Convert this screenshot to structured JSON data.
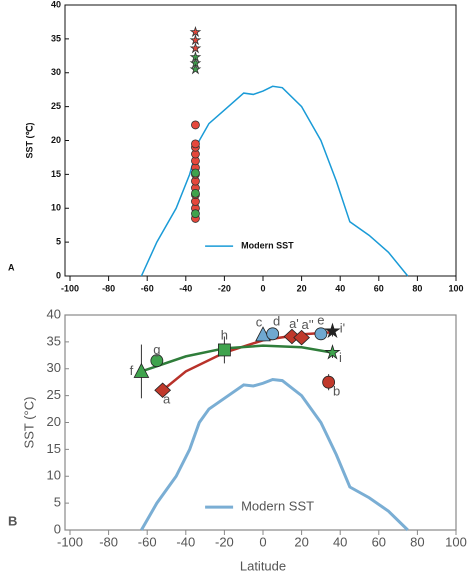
{
  "chart_data": [
    {
      "type": "scatter",
      "panel_label": "A",
      "ylabel": "SST (℃)",
      "xlim": [
        -100,
        100
      ],
      "xticks": [
        -100,
        -80,
        -60,
        -40,
        -20,
        0,
        20,
        40,
        60,
        80,
        100
      ],
      "ylim": [
        0,
        40
      ],
      "yticks": [
        0,
        5,
        10,
        15,
        20,
        25,
        30,
        35,
        40
      ],
      "series": [
        {
          "name": "Modern SST",
          "color": "#1a9bd7",
          "x": [
            -63,
            -55,
            -45,
            -38,
            -33,
            -28,
            -20,
            -10,
            -5,
            0,
            5,
            10,
            20,
            30,
            38,
            45,
            55,
            65,
            75
          ],
          "values": [
            0,
            5,
            10,
            15,
            20,
            22.5,
            24.5,
            27,
            26.8,
            27.3,
            28,
            27.8,
            25,
            20,
            14,
            8,
            6,
            3.5,
            0
          ]
        }
      ],
      "points": [
        {
          "marker": "circle",
          "color": "#e5483c",
          "x": [
            -35,
            -35,
            -35,
            -35,
            -35,
            -35,
            -35,
            -35,
            -35,
            -35,
            -35,
            -35,
            -35
          ],
          "values": [
            8.5,
            10,
            11,
            12,
            13,
            14,
            15,
            16,
            17,
            18,
            19,
            19.5,
            22.3
          ]
        },
        {
          "marker": "circle",
          "color": "#3fa34d",
          "x": [
            -35,
            -35,
            -35
          ],
          "values": [
            9.2,
            12.2,
            15.2
          ]
        },
        {
          "marker": "star",
          "color": "#e5483c",
          "x": [
            -35,
            -35,
            -35
          ],
          "values": [
            36,
            34.8,
            33.6
          ]
        },
        {
          "marker": "star",
          "color": "#3fa34d",
          "x": [
            -35,
            -35,
            -35
          ],
          "values": [
            32.3,
            31.4,
            30.5
          ]
        }
      ]
    },
    {
      "type": "scatter",
      "panel_label": "B",
      "ylabel": "SST (°C)",
      "xlabel": "Latitude",
      "xlim": [
        -100,
        100
      ],
      "xticks": [
        -100,
        -80,
        -60,
        -40,
        -20,
        0,
        20,
        40,
        60,
        80,
        100
      ],
      "ylim": [
        0,
        40
      ],
      "yticks": [
        0,
        5,
        10,
        15,
        20,
        25,
        30,
        35,
        40
      ],
      "series": [
        {
          "name": "Modern SST",
          "color": "#7aaed4",
          "x": [
            -63,
            -55,
            -45,
            -38,
            -33,
            -28,
            -20,
            -10,
            -5,
            0,
            5,
            10,
            20,
            30,
            38,
            45,
            55,
            65,
            75
          ],
          "values": [
            0,
            5,
            10,
            15,
            20,
            22.5,
            24.5,
            27,
            26.8,
            27.3,
            28,
            27.8,
            25,
            20,
            14,
            8,
            6,
            3.5,
            0
          ]
        }
      ],
      "fits": [
        {
          "color": "#b8322a",
          "x": [
            -52,
            -40,
            -20,
            0,
            20,
            36
          ],
          "values": [
            26,
            29.5,
            33,
            35.3,
            36.4,
            36.8
          ]
        },
        {
          "color": "#2f7d3a",
          "x": [
            -63,
            -40,
            -20,
            0,
            20,
            36
          ],
          "values": [
            29.5,
            32.3,
            33.8,
            34.3,
            34,
            33
          ]
        }
      ],
      "labeled_points": [
        {
          "label": "f",
          "marker": "triangle",
          "color": "#3fa34d",
          "x": -63,
          "value": 29.5,
          "error": 5
        },
        {
          "label": "g",
          "marker": "circle",
          "color": "#3fa34d",
          "x": -55,
          "value": 31.5,
          "error": 1
        },
        {
          "label": "a",
          "marker": "diamond",
          "color": "#c0392b",
          "x": -52,
          "value": 26,
          "error": 1
        },
        {
          "label": "h",
          "marker": "square",
          "color": "#3fa34d",
          "x": -20,
          "value": 33.5,
          "error": 2.5
        },
        {
          "label": "c",
          "marker": "triangle",
          "color": "#6fa8d0",
          "x": 0,
          "value": 36.3,
          "error": 0.8
        },
        {
          "label": "d",
          "marker": "circle",
          "color": "#6fa8d0",
          "x": 5,
          "value": 36.5,
          "error": 0.8
        },
        {
          "label": "a'",
          "marker": "diamond",
          "color": "#c0392b",
          "x": 15,
          "value": 36,
          "error": 0.5
        },
        {
          "label": "a''",
          "marker": "diamond",
          "color": "#c0392b",
          "x": 20,
          "value": 35.8,
          "error": 0.5
        },
        {
          "label": "e",
          "marker": "circle",
          "color": "#6fa8d0",
          "x": 30,
          "value": 36.5,
          "error": 0.8
        },
        {
          "label": "i'",
          "marker": "star",
          "color": "#222",
          "x": 36,
          "value": 37,
          "error": 1
        },
        {
          "label": "i",
          "marker": "star",
          "color": "#3fa34d",
          "x": 36,
          "value": 33,
          "error": 1
        },
        {
          "label": "b",
          "marker": "circle",
          "color": "#c0392b",
          "x": 34,
          "value": 27.5,
          "error": 1.5
        }
      ]
    }
  ]
}
